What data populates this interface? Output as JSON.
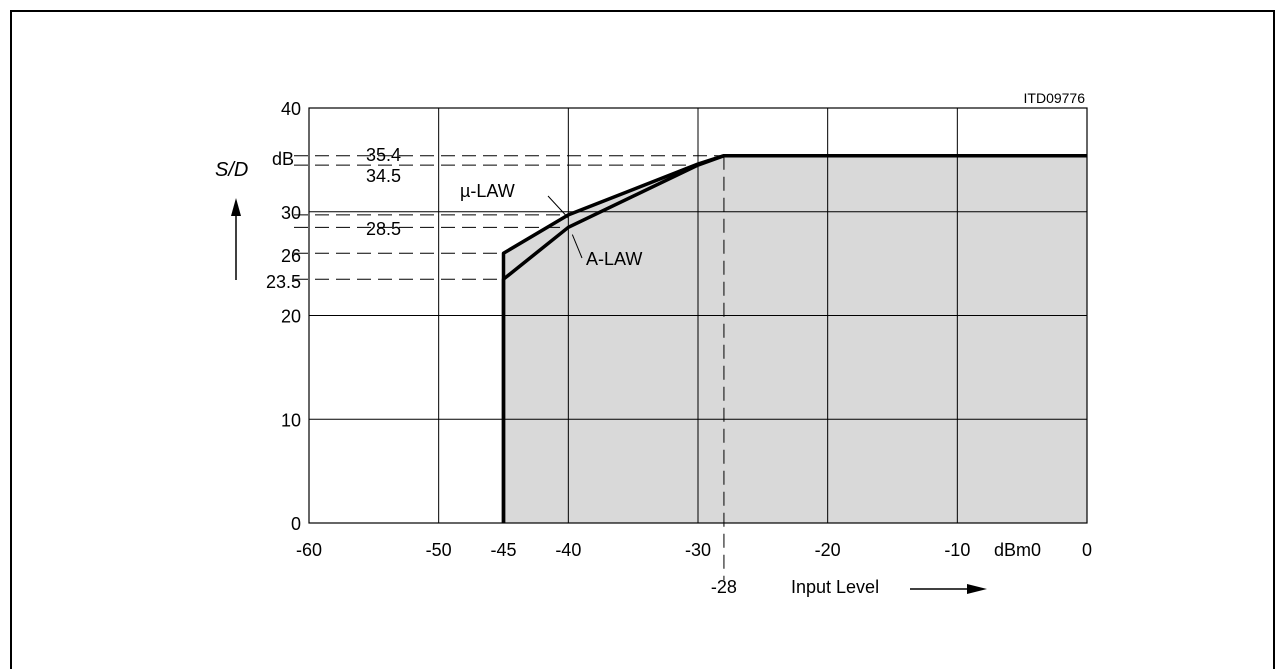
{
  "chart_data": {
    "type": "line",
    "figure_id": "ITD09776",
    "ylabel_symbol": "S/D",
    "ylabel_unit": "dB",
    "xlabel": "Input Level",
    "xlabel_unit": "dBm0",
    "xlim": [
      -60,
      0
    ],
    "ylim": [
      0,
      40
    ],
    "grid": true,
    "x_ticks": [
      {
        "value": -60,
        "label": "-60"
      },
      {
        "value": -50,
        "label": "-50"
      },
      {
        "value": -45,
        "label": "-45"
      },
      {
        "value": -40,
        "label": "-40"
      },
      {
        "value": -30,
        "label": "-30"
      },
      {
        "value": -20,
        "label": "-20"
      },
      {
        "value": -10,
        "label": "-10"
      },
      {
        "value": 0,
        "label": "0"
      }
    ],
    "x_grid": [
      -50,
      -40,
      -30,
      -20,
      -10,
      0
    ],
    "y_ticks": [
      {
        "value": 0,
        "label": "0"
      },
      {
        "value": 10,
        "label": "10"
      },
      {
        "value": 20,
        "label": "20"
      },
      {
        "value": 30,
        "label": "30"
      },
      {
        "value": 40,
        "label": "40"
      }
    ],
    "extra_x_label": {
      "value": -28,
      "label": "-28"
    },
    "reference_levels": [
      {
        "value": 35.4,
        "label": "35.4"
      },
      {
        "value": 34.5,
        "label": "34.5"
      },
      {
        "value": 29.7,
        "label": ""
      },
      {
        "value": 28.5,
        "label": "28.5"
      },
      {
        "value": 26,
        "label": "26"
      },
      {
        "value": 23.5,
        "label": "23.5"
      }
    ],
    "series": [
      {
        "name": "µ-LAW",
        "points": [
          [
            -45,
            0
          ],
          [
            -45,
            26
          ],
          [
            -40,
            29.7
          ],
          [
            -30,
            34.6
          ],
          [
            -28,
            35.4
          ],
          [
            0,
            35.4
          ]
        ]
      },
      {
        "name": "A-LAW",
        "points": [
          [
            -45,
            0
          ],
          [
            -45,
            23.5
          ],
          [
            -40,
            28.5
          ],
          [
            -30,
            34.5
          ],
          [
            -28,
            35.4
          ],
          [
            0,
            35.4
          ]
        ]
      }
    ],
    "shaded_region": "area under the curves",
    "colors": {
      "fill": "#d9d9d9",
      "line": "#000000"
    }
  }
}
